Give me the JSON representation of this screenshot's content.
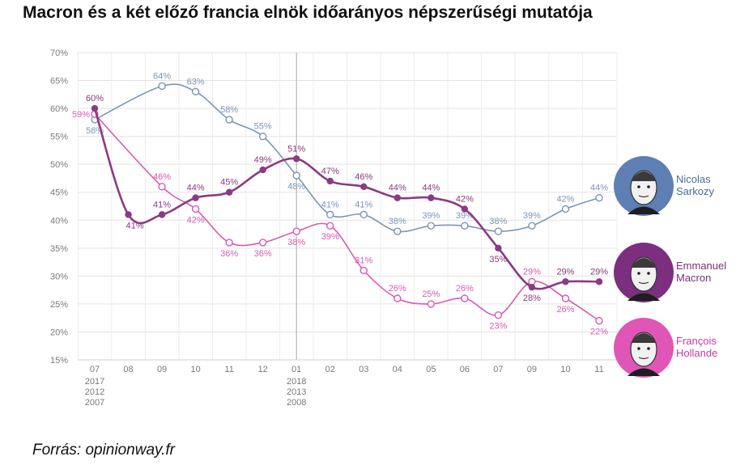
{
  "title": "Macron és a két előző francia elnök időarányos népszerűségi mutatója",
  "source": "Forrás: opinionway.fr",
  "chart_data": {
    "type": "line",
    "title": "Macron és a két előző francia elnök időarányos népszerűségi mutatója",
    "ylim": [
      15,
      70
    ],
    "yticks": [
      "15%",
      "20%",
      "25%",
      "30%",
      "35%",
      "40%",
      "45%",
      "50%",
      "55%",
      "60%",
      "65%",
      "70%"
    ],
    "grid": true,
    "legend": "right",
    "categories": [
      {
        "month": "07",
        "years": [
          "2017",
          "2012",
          "2007"
        ]
      },
      {
        "month": "08",
        "years": []
      },
      {
        "month": "09",
        "years": []
      },
      {
        "month": "10",
        "years": []
      },
      {
        "month": "11",
        "years": []
      },
      {
        "month": "12",
        "years": []
      },
      {
        "month": "01",
        "years": [
          "2018",
          "2013",
          "2008"
        ]
      },
      {
        "month": "02",
        "years": []
      },
      {
        "month": "03",
        "years": []
      },
      {
        "month": "04",
        "years": []
      },
      {
        "month": "05",
        "years": []
      },
      {
        "month": "06",
        "years": []
      },
      {
        "month": "07",
        "years": []
      },
      {
        "month": "09",
        "years": []
      },
      {
        "month": "10",
        "years": []
      },
      {
        "month": "11",
        "years": []
      }
    ],
    "series": [
      {
        "name": "Nicolas Sarkozy",
        "color": "#7b95b8",
        "values": [
          58,
          null,
          64,
          63,
          58,
          55,
          48,
          41,
          41,
          38,
          39,
          39,
          38,
          39,
          42,
          44
        ],
        "labels": [
          "58%",
          "",
          "64%",
          "63%",
          "58%",
          "55%",
          "48%",
          "41%",
          "41%",
          "38%",
          "39%",
          "39%",
          "38%",
          "39%",
          "42%",
          "44%"
        ],
        "label_pos": [
          "below",
          "",
          "above",
          "above",
          "above",
          "above",
          "below",
          "above",
          "above",
          "above",
          "above",
          "above",
          "above",
          "above",
          "above",
          "above"
        ]
      },
      {
        "name": "François Hollande",
        "color": "#d65bb4",
        "values": [
          59,
          null,
          46,
          42,
          36,
          36,
          38,
          39,
          31,
          26,
          25,
          26,
          23,
          29,
          26,
          22
        ],
        "labels": [
          "59%",
          "",
          "46%",
          "42%",
          "36%",
          "36%",
          "38%",
          "39%",
          "31%",
          "26%",
          "25%",
          "26%",
          "23%",
          "29%",
          "26%",
          "22%"
        ],
        "label_pos": [
          "left",
          "",
          "above",
          "below",
          "below",
          "below",
          "below",
          "below",
          "above",
          "above",
          "above",
          "above",
          "below",
          "above",
          "below",
          "below"
        ]
      },
      {
        "name": "Emmanuel Macron",
        "color": "#8c3a83",
        "values": [
          60,
          41,
          41,
          44,
          45,
          49,
          51,
          47,
          46,
          44,
          44,
          42,
          35,
          28,
          29,
          29
        ],
        "labels": [
          "60%",
          "41%",
          "41%",
          "44%",
          "45%",
          "49%",
          "51%",
          "47%",
          "46%",
          "44%",
          "44%",
          "42%",
          "35%",
          "28%",
          "29%",
          "29%"
        ],
        "label_pos": [
          "above",
          "below-right",
          "above",
          "above",
          "above",
          "above",
          "above",
          "above",
          "above",
          "above",
          "above",
          "above",
          "below",
          "below",
          "above",
          "above"
        ]
      }
    ],
    "legend_entries": [
      {
        "lines": [
          "Nicolas",
          "Sarkozy"
        ],
        "color": "#5d7fb3",
        "text_color": "#4a6c9d",
        "icon": "sarkozy-portrait-icon"
      },
      {
        "lines": [
          "Emmanuel",
          "Macron"
        ],
        "color": "#7b2f7e",
        "text_color": "#7b2f7e",
        "icon": "macron-portrait-icon"
      },
      {
        "lines": [
          "François",
          "Hollande"
        ],
        "color": "#e056b6",
        "text_color": "#c83aa0",
        "icon": "hollande-portrait-icon"
      }
    ]
  }
}
